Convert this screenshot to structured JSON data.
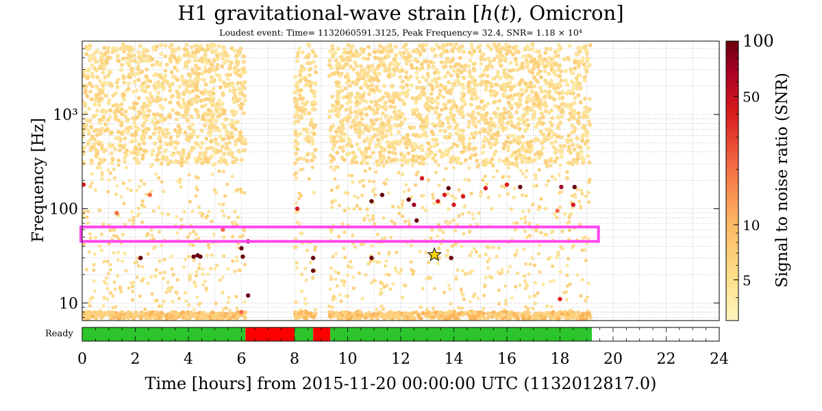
{
  "chart_data": {
    "type": "scatter",
    "title": "H1 gravitational-wave strain [h(t), Omicron]",
    "subtitle": "Loudest event: Time= 1132060591.3125, Peak Frequency= 32.4, SNR= 1.18 × 10⁴",
    "xlabel": "Time [hours] from 2015-11-20 00:00:00 UTC (1132012817.0)",
    "ylabel": "Frequency [Hz]",
    "xlim": [
      0,
      24
    ],
    "ylim": [
      6.5,
      6000
    ],
    "yscale": "log",
    "x_ticks": [
      "0",
      "2",
      "4",
      "6",
      "8",
      "10",
      "12",
      "14",
      "16",
      "18",
      "20",
      "22",
      "24"
    ],
    "y_ticks": [
      {
        "value": 10,
        "label": "10"
      },
      {
        "value": 100,
        "label": "100"
      },
      {
        "value": 1000,
        "label": "10³"
      }
    ],
    "grid": true,
    "colorbar": {
      "label": "Signal to noise ratio (SNR)",
      "scale": "log",
      "range": [
        3,
        100
      ],
      "ticks": [
        {
          "value": 5,
          "label": "5"
        },
        {
          "value": 10,
          "label": "10"
        },
        {
          "value": 50,
          "label": "50"
        },
        {
          "value": 100,
          "label": "100"
        }
      ],
      "colors": [
        "#fff5c0",
        "#fee08b",
        "#fdb863",
        "#f46d43",
        "#d7191c",
        "#a50026",
        "#67000d"
      ]
    },
    "dense_time_segments": [
      [
        0,
        6.15
      ],
      [
        8.0,
        8.8
      ],
      [
        9.3,
        14.45
      ],
      [
        14.55,
        19.15
      ]
    ],
    "events": [
      {
        "t": 2.2,
        "f": 30,
        "snr": 100
      },
      {
        "t": 4.2,
        "f": 31,
        "snr": 100
      },
      {
        "t": 4.35,
        "f": 32,
        "snr": 100
      },
      {
        "t": 4.45,
        "f": 31,
        "snr": 100
      },
      {
        "t": 6.0,
        "f": 38,
        "snr": 80
      },
      {
        "t": 6.05,
        "f": 31,
        "snr": 100
      },
      {
        "t": 6.25,
        "f": 12,
        "snr": 100
      },
      {
        "t": 6.25,
        "f": 45,
        "snr": 60
      },
      {
        "t": 0.05,
        "f": 180,
        "snr": 40
      },
      {
        "t": 1.3,
        "f": 90,
        "snr": 20
      },
      {
        "t": 2.55,
        "f": 140,
        "snr": 20
      },
      {
        "t": 5.3,
        "f": 60,
        "snr": 20
      },
      {
        "t": 8.1,
        "f": 100,
        "snr": 40
      },
      {
        "t": 8.7,
        "f": 30,
        "snr": 100
      },
      {
        "t": 8.7,
        "f": 22,
        "snr": 100
      },
      {
        "t": 10.9,
        "f": 30,
        "snr": 100
      },
      {
        "t": 10.9,
        "f": 120,
        "snr": 100
      },
      {
        "t": 11.3,
        "f": 140,
        "snr": 100
      },
      {
        "t": 12.5,
        "f": 110,
        "snr": 60
      },
      {
        "t": 12.6,
        "f": 75,
        "snr": 100
      },
      {
        "t": 12.8,
        "f": 210,
        "snr": 40
      },
      {
        "t": 12.3,
        "f": 125,
        "snr": 100
      },
      {
        "t": 13.8,
        "f": 165,
        "snr": 80
      },
      {
        "t": 13.65,
        "f": 140,
        "snr": 40
      },
      {
        "t": 13.4,
        "f": 120,
        "snr": 40
      },
      {
        "t": 13.9,
        "f": 30,
        "snr": 100
      },
      {
        "t": 14.0,
        "f": 110,
        "snr": 30
      },
      {
        "t": 14.35,
        "f": 135,
        "snr": 30
      },
      {
        "t": 15.2,
        "f": 165,
        "snr": 40
      },
      {
        "t": 16.5,
        "f": 170,
        "snr": 100
      },
      {
        "t": 16.0,
        "f": 180,
        "snr": 40
      },
      {
        "t": 17.9,
        "f": 95,
        "snr": 20
      },
      {
        "t": 18.05,
        "f": 170,
        "snr": 60
      },
      {
        "t": 18.55,
        "f": 170,
        "snr": 100
      },
      {
        "t": 18.5,
        "f": 110,
        "snr": 40
      },
      {
        "t": 18.0,
        "f": 11,
        "snr": 30
      },
      {
        "t": 1.2,
        "f": 7,
        "snr": 12
      },
      {
        "t": 2.9,
        "f": 7,
        "snr": 12
      },
      {
        "t": 3.4,
        "f": 7.2,
        "snr": 12
      },
      {
        "t": 6.0,
        "f": 8,
        "snr": 20
      }
    ],
    "loudest_event": {
      "t": 13.27,
      "f": 32.4
    },
    "highlight_band": {
      "t_range": [
        0,
        19.45
      ],
      "f_range": [
        45,
        64
      ],
      "color": "#ff44ee"
    },
    "ready_segments": [
      {
        "state": "ready",
        "start": 0,
        "end": 6.15,
        "color": "#2dc52d"
      },
      {
        "state": "not-ready",
        "start": 6.15,
        "end": 8.0,
        "color": "#ff0000"
      },
      {
        "state": "ready",
        "start": 8.0,
        "end": 8.7,
        "color": "#2dc52d"
      },
      {
        "state": "not-ready",
        "start": 8.7,
        "end": 9.35,
        "color": "#ff0000"
      },
      {
        "state": "ready",
        "start": 9.35,
        "end": 19.2,
        "color": "#2dc52d"
      }
    ],
    "ready_label": "Ready"
  }
}
